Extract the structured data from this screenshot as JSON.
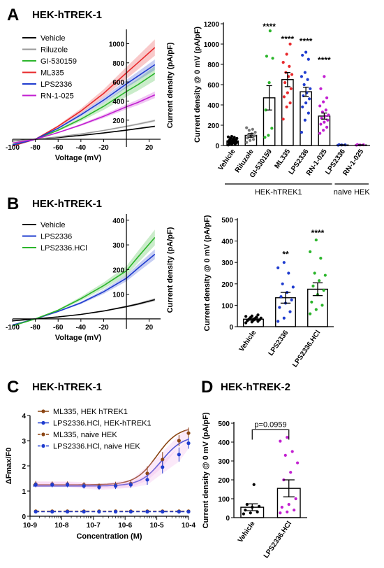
{
  "panels": {
    "A": {
      "letter": "A",
      "title": "HEK-hTREK-1"
    },
    "B": {
      "letter": "B",
      "title": "HEK-hTREK-1"
    },
    "C": {
      "letter": "C",
      "title": "HEK-hTREK-1"
    },
    "D": {
      "letter": "D",
      "title": "HEK-hTREK-2"
    }
  },
  "chart_data": [
    {
      "id": "A_iv",
      "type": "line",
      "xlabel": "Voltage (mV)",
      "ylabel": "",
      "xlim": [
        -100,
        30
      ],
      "ylim": [
        -80,
        1150
      ],
      "xticks": [
        -100,
        -80,
        -60,
        -40,
        -20,
        20
      ],
      "yticks": [
        200,
        400,
        600,
        800,
        1000
      ],
      "x": [
        -100,
        -80,
        -60,
        -40,
        -20,
        0,
        10,
        25
      ],
      "series": [
        {
          "name": "Vehicle",
          "color": "#000000",
          "values": [
            -18,
            0,
            18,
            40,
            66,
            95,
            112,
            135
          ],
          "band": 8
        },
        {
          "name": "Riluzole",
          "color": "#999999",
          "values": [
            -20,
            0,
            25,
            55,
            92,
            135,
            158,
            195
          ],
          "band": 14
        },
        {
          "name": "GI-530159",
          "color": "#2bb52b",
          "values": [
            -55,
            0,
            95,
            210,
            345,
            500,
            570,
            690
          ],
          "band": 75
        },
        {
          "name": "ML335",
          "color": "#e8282b",
          "values": [
            -70,
            0,
            135,
            295,
            480,
            695,
            800,
            960
          ],
          "band": 85
        },
        {
          "name": "LPS2336",
          "color": "#1f3ccf",
          "values": [
            -60,
            0,
            115,
            255,
            410,
            580,
            660,
            780
          ],
          "band": 55
        },
        {
          "name": "RN-1-025",
          "color": "#c21fd1",
          "values": [
            -40,
            0,
            70,
            150,
            240,
            340,
            385,
            465
          ],
          "band": 35
        }
      ]
    },
    {
      "id": "A_bar",
      "type": "bar",
      "ylabel": "Current density @ 0 mV (pA/pF)",
      "ylim": [
        0,
        1200
      ],
      "yticks": [
        0,
        200,
        400,
        600,
        800,
        1000,
        1200
      ],
      "categories": [
        "Vehicle",
        "Riluzole",
        "GI-530159",
        "ML335",
        "LPS2336",
        "RN-1-025",
        "LPS2336",
        "RN-1-025"
      ],
      "values": [
        45,
        100,
        470,
        650,
        530,
        290,
        5,
        5
      ],
      "sem": [
        10,
        18,
        120,
        70,
        45,
        30,
        2,
        2
      ],
      "colors": [
        "#000000",
        "#777777",
        "#2bb52b",
        "#e8282b",
        "#1f3ccf",
        "#c21fd1",
        "#1f3ccf",
        "#c21fd1"
      ],
      "points": [
        [
          5,
          10,
          15,
          18,
          22,
          25,
          28,
          30,
          33,
          35,
          38,
          40,
          42,
          45,
          48,
          50,
          55,
          60,
          65,
          70,
          75,
          80,
          85,
          90
        ],
        [
          30,
          50,
          60,
          75,
          85,
          95,
          105,
          115,
          130,
          150,
          160,
          175
        ],
        [
          80,
          100,
          170,
          350,
          620,
          860,
          880,
          1130
        ],
        [
          260,
          380,
          420,
          480,
          520,
          560,
          620,
          680,
          700,
          720,
          780,
          820,
          900,
          1000
        ],
        [
          130,
          250,
          320,
          380,
          420,
          460,
          490,
          520,
          560,
          600,
          650,
          680,
          720,
          850,
          890,
          920
        ],
        [
          120,
          150,
          180,
          210,
          230,
          250,
          270,
          290,
          300,
          330,
          350,
          390,
          430,
          470,
          560,
          680
        ],
        [
          3,
          5,
          6,
          8
        ],
        [
          3,
          5,
          7,
          9
        ]
      ],
      "annotations": [
        "****",
        "****",
        "****",
        "****"
      ],
      "annotation_bars": [
        2,
        3,
        4,
        5
      ],
      "annotation_values": [
        1145,
        1020,
        1000,
        815
      ],
      "groups": [
        {
          "label": "HEK-hTREK1",
          "from": 0,
          "to": 5
        },
        {
          "label": "naive HEK",
          "from": 6,
          "to": 7
        }
      ]
    },
    {
      "id": "B_iv",
      "type": "line",
      "xlabel": "Voltage (mV)",
      "ylabel": "",
      "xlim": [
        -100,
        30
      ],
      "ylim": [
        -40,
        425
      ],
      "xticks": [
        -100,
        -80,
        -60,
        -40,
        -20,
        20
      ],
      "yticks": [
        100,
        200,
        300,
        400
      ],
      "x": [
        -100,
        -80,
        -60,
        -40,
        -20,
        0,
        10,
        25
      ],
      "series": [
        {
          "name": "Vehicle",
          "color": "#000000",
          "values": [
            -8,
            0,
            8,
            18,
            32,
            50,
            60,
            78
          ],
          "band": 6
        },
        {
          "name": "LPS2336",
          "color": "#1f3ccf",
          "values": [
            -25,
            0,
            30,
            65,
            110,
            165,
            205,
            262
          ],
          "band": 20
        },
        {
          "name": "LPS2336.HCl",
          "color": "#2bb52b",
          "values": [
            -28,
            0,
            35,
            82,
            135,
            195,
            250,
            330
          ],
          "band": 32
        }
      ]
    },
    {
      "id": "B_bar",
      "type": "bar",
      "ylabel": "Current density @ 0 mV (pA/pF)",
      "ylim": [
        0,
        500
      ],
      "yticks": [
        0,
        100,
        200,
        300,
        400,
        500
      ],
      "categories": [
        "Vehicle",
        "LPS2336",
        "LPS2336.HCl"
      ],
      "values": [
        35,
        135,
        175
      ],
      "sem": [
        5,
        25,
        30
      ],
      "colors": [
        "#000000",
        "#1f3ccf",
        "#2bb52b"
      ],
      "points": [
        [
          18,
          22,
          25,
          28,
          30,
          32,
          35,
          38,
          40,
          42,
          45,
          48,
          50,
          55
        ],
        [
          25,
          40,
          70,
          90,
          110,
          125,
          140,
          160,
          185,
          200,
          250,
          275,
          300
        ],
        [
          60,
          80,
          100,
          115,
          150,
          170,
          190,
          215,
          240,
          250,
          320,
          350,
          405
        ]
      ],
      "annotations": [
        "**",
        "****"
      ],
      "annotation_bars": [
        1,
        2
      ],
      "annotation_values": [
        325,
        425
      ]
    },
    {
      "id": "C_dose",
      "type": "scatter",
      "xlabel": "Concentration (M)",
      "ylabel": "ΔFmax/F0",
      "xscale": "log",
      "xlim": [
        -9,
        -4
      ],
      "ylim": [
        0,
        4
      ],
      "yticks": [
        0,
        1,
        2,
        3,
        4
      ],
      "xticks": [
        "10-9",
        "10-8",
        "10-7",
        "10-6",
        "10-5",
        "10-4"
      ],
      "x": [
        -8.82,
        -8.3,
        -7.82,
        -7.3,
        -6.82,
        -6.3,
        -5.82,
        -5.3,
        -4.82,
        -4.3,
        -4
      ],
      "series": [
        {
          "name": "ML335, HEK hTREK1",
          "color": "#8b4513",
          "dashed": false,
          "values": [
            1.28,
            1.28,
            1.28,
            1.25,
            1.2,
            1.25,
            1.3,
            1.7,
            2.25,
            3.0,
            3.3
          ],
          "sem": [
            0.12,
            0.1,
            0.1,
            0.1,
            0.1,
            0.12,
            0.15,
            0.28,
            0.3,
            0.22,
            0.22
          ]
        },
        {
          "name": "LPS2336.HCl, HEK-hTREK1",
          "color": "#1f3ccf",
          "dashed": false,
          "values": [
            1.25,
            1.25,
            1.25,
            1.2,
            1.15,
            1.2,
            1.25,
            1.45,
            1.95,
            2.45,
            2.9
          ],
          "sem": [
            0.1,
            0.1,
            0.1,
            0.1,
            0.1,
            0.12,
            0.12,
            0.2,
            0.25,
            0.28,
            0.22
          ]
        },
        {
          "name": "ML335, naive HEK",
          "color": "#8b4513",
          "dashed": true,
          "values": [
            0.2,
            0.2,
            0.2,
            0.2,
            0.2,
            0.2,
            0.2,
            0.2,
            0.2,
            0.2,
            0.2
          ],
          "sem": [
            0.02,
            0.02,
            0.02,
            0.02,
            0.02,
            0.02,
            0.02,
            0.02,
            0.02,
            0.02,
            0.02
          ]
        },
        {
          "name": "LPS2336.HCl, naive HEK",
          "color": "#1f3ccf",
          "dashed": true,
          "values": [
            0.18,
            0.18,
            0.18,
            0.18,
            0.18,
            0.18,
            0.18,
            0.18,
            0.18,
            0.18,
            0.18
          ],
          "sem": [
            0.02,
            0.02,
            0.02,
            0.02,
            0.02,
            0.02,
            0.02,
            0.02,
            0.02,
            0.02,
            0.02
          ]
        }
      ],
      "fits": [
        {
          "name": "ML335, HEK hTREK1",
          "bottom": 1.25,
          "top": 3.55,
          "logec50": -5.0,
          "hill": 1.3
        },
        {
          "name": "LPS2336.HCl, HEK-hTREK1",
          "bottom": 1.2,
          "top": 3.2,
          "logec50": -4.85,
          "hill": 1.3
        }
      ]
    },
    {
      "id": "D_bar",
      "type": "bar",
      "ylabel": "Current density @ 0 mV (pA/pF)",
      "ylim": [
        0,
        500
      ],
      "yticks": [
        0,
        100,
        200,
        300,
        400,
        500
      ],
      "categories": [
        "Vehicle",
        "LPS2336.HCl"
      ],
      "values": [
        55,
        155
      ],
      "sem": [
        18,
        45
      ],
      "colors": [
        "#000000",
        "#c21fd1"
      ],
      "points": [
        [
          20,
          25,
          30,
          40,
          55,
          60,
          70,
          175
        ],
        [
          25,
          30,
          40,
          55,
          70,
          100,
          200,
          240,
          290,
          330,
          350,
          405,
          425
        ]
      ],
      "comparison": {
        "from": 0,
        "to": 1,
        "label": "p=0.0959",
        "value": 465
      }
    }
  ]
}
